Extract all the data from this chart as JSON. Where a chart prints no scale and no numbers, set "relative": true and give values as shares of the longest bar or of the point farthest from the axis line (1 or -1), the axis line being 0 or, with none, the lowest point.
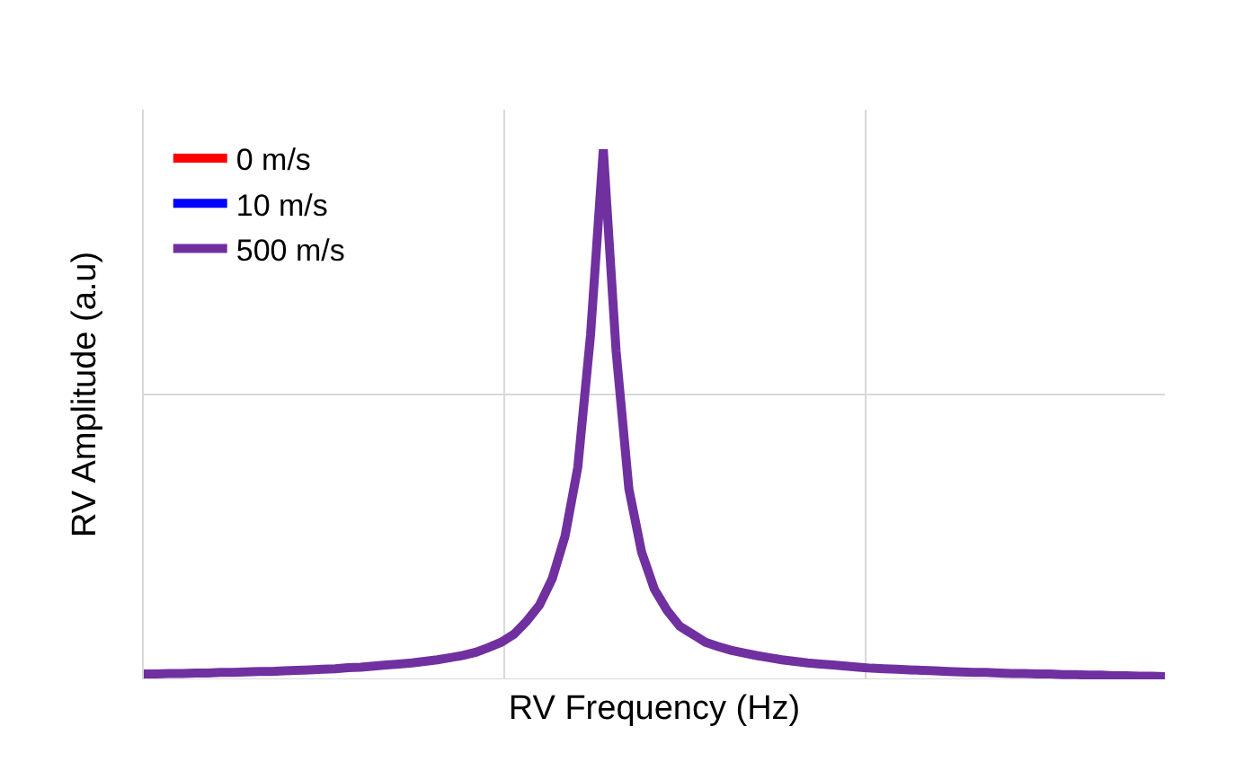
{
  "chart_data": {
    "type": "line",
    "relative": true,
    "xlabel": "RV Frequency (Hz)",
    "ylabel": "RV Amplitude (a.u)",
    "grid": true,
    "legend": "top left",
    "marker": "none",
    "line_style": "solid",
    "categories": [
      null,
      null,
      null,
      null,
      null,
      null,
      null,
      null,
      null,
      null,
      null,
      null,
      null,
      null,
      null,
      null,
      null,
      null,
      null,
      null,
      null,
      null,
      null,
      null,
      null,
      null,
      null,
      null,
      null,
      null,
      null,
      null,
      null,
      null,
      null,
      null,
      null,
      null,
      null,
      null,
      null,
      null,
      null,
      null,
      null,
      null,
      null,
      null,
      null,
      null,
      null,
      null,
      null,
      null,
      null,
      null,
      null,
      null,
      null,
      null,
      null,
      null,
      null,
      null,
      null,
      null,
      null,
      null,
      null,
      null,
      null,
      null,
      null,
      null,
      null,
      null,
      null,
      null,
      null,
      null,
      null
    ],
    "series": [
      {
        "name": "0 m/s",
        "color": "#ff0000",
        "values": [
          null,
          null,
          null,
          null,
          null,
          null,
          null,
          null,
          null,
          null,
          null,
          null,
          null,
          null,
          null,
          null,
          null,
          null,
          null,
          null,
          null,
          null,
          null,
          null,
          null,
          null,
          null,
          null,
          null,
          null,
          null,
          null,
          null,
          null,
          null,
          null,
          null,
          null,
          null,
          null,
          null,
          null,
          null,
          null,
          null,
          null,
          null,
          null,
          null,
          null,
          null,
          null,
          null,
          null,
          null,
          null,
          null,
          null,
          null,
          null,
          null,
          null,
          null,
          null,
          null,
          null,
          null,
          null,
          null,
          null,
          null,
          null,
          null,
          null,
          null,
          null,
          null,
          null,
          null,
          null,
          null
        ]
      },
      {
        "name": "10 m/s",
        "color": "#0000ff",
        "values": [
          null,
          null,
          null,
          null,
          null,
          null,
          null,
          null,
          null,
          null,
          null,
          null,
          null,
          null,
          null,
          null,
          null,
          null,
          null,
          null,
          null,
          null,
          null,
          null,
          null,
          null,
          null,
          null,
          null,
          null,
          null,
          null,
          null,
          null,
          null,
          null,
          null,
          null,
          null,
          null,
          null,
          null,
          null,
          null,
          null,
          null,
          null,
          null,
          null,
          null,
          null,
          null,
          null,
          null,
          null,
          null,
          null,
          null,
          null,
          null,
          null,
          null,
          null,
          null,
          null,
          null,
          null,
          null,
          null,
          null,
          null,
          null,
          null,
          null,
          null,
          null,
          null,
          null,
          null,
          null,
          null
        ]
      },
      {
        "name": "500 m/s",
        "color": "#7030a0",
        "values": [
          0.01,
          0.01,
          0.011,
          0.011,
          0.012,
          0.012,
          0.013,
          0.013,
          0.014,
          0.015,
          0.015,
          0.016,
          0.017,
          0.018,
          0.019,
          0.02,
          0.022,
          0.023,
          0.025,
          0.027,
          0.029,
          0.031,
          0.034,
          0.037,
          0.041,
          0.045,
          0.051,
          0.06,
          0.07,
          0.085,
          0.11,
          0.14,
          0.19,
          0.27,
          0.4,
          0.65,
          1.0,
          0.62,
          0.36,
          0.24,
          0.17,
          0.13,
          0.1,
          0.085,
          0.07,
          0.062,
          0.055,
          0.05,
          0.045,
          0.041,
          0.037,
          0.034,
          0.031,
          0.029,
          0.027,
          0.025,
          0.023,
          0.021,
          0.02,
          0.019,
          0.018,
          0.017,
          0.016,
          0.015,
          0.014,
          0.013,
          0.013,
          0.012,
          0.011,
          0.011,
          0.01,
          0.01,
          0.009,
          0.009,
          0.008,
          0.008,
          0.007,
          0.007,
          0.006,
          0.006,
          0.005
        ]
      }
    ]
  }
}
